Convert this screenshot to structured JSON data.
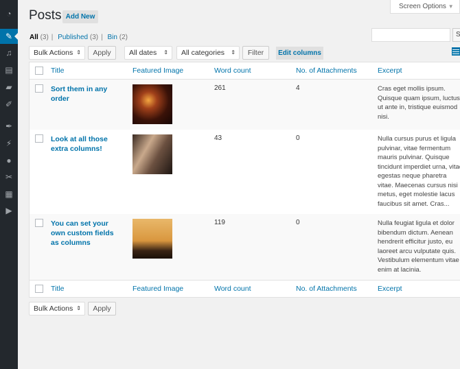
{
  "sidebar": {
    "items": [
      "dashboard-icon",
      "pin-icon",
      "media-icon",
      "pages-icon",
      "comments-icon",
      "feedback-icon",
      "appearance-icon",
      "plugins-icon",
      "users-icon",
      "tools-icon",
      "settings-icon",
      "play-icon"
    ],
    "active_index": 1
  },
  "header": {
    "title": "Posts",
    "add_new": "Add New",
    "screen_options": "Screen Options"
  },
  "filters": {
    "all": "All",
    "all_count": "(3)",
    "published": "Published",
    "published_count": "(3)",
    "bin": "Bin",
    "bin_count": "(2)"
  },
  "search": {
    "value": "",
    "button_label": "S"
  },
  "toolbar": {
    "bulk_actions": "Bulk Actions",
    "apply": "Apply",
    "dates": "All dates",
    "categories": "All categories",
    "filter": "Filter",
    "edit_columns": "Edit columns"
  },
  "columns": [
    "Title",
    "Featured Image",
    "Word count",
    "No. of Attachments",
    "Excerpt"
  ],
  "rows": [
    {
      "title": "Sort them in any order",
      "image": "restaurant-interior",
      "word_count": "261",
      "attachments": "4",
      "excerpt": "Cras eget mollis ipsum. Quisque quam ipsum, luctus ut ante in, tristique euismod nisi."
    },
    {
      "title": "Look at all those extra columns!",
      "image": "couple-portrait",
      "word_count": "43",
      "attachments": "0",
      "excerpt": "Nulla cursus purus et ligula pulvinar, vitae fermentum mauris pulvinar. Quisque tincidunt imperdiet urna, vitae egestas neque pharetra vitae. Maecenas cursus nisi metus, eget molestie lacus faucibus sit amet. Cras..."
    },
    {
      "title": "You can set your own custom fields as columns",
      "image": "silhouette-sunset",
      "word_count": "119",
      "attachments": "0",
      "excerpt": "Nulla feugiat ligula et dolor bibendum dictum. Aenean hendrerit efficitur justo, eu laoreet arcu vulputate quis. Vestibulum elementum vitae enim at lacinia."
    }
  ],
  "colors": {
    "accent": "#0073aa",
    "sidebar": "#23282d"
  }
}
